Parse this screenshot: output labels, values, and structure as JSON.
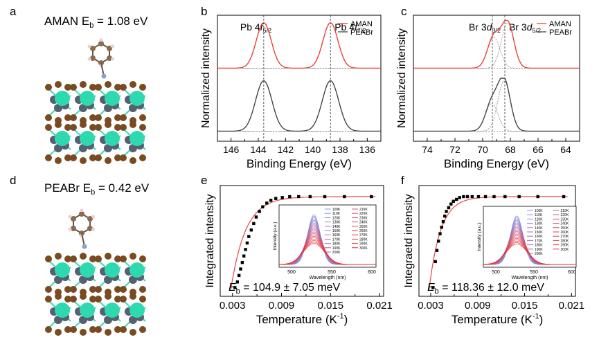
{
  "panels": {
    "a": {
      "letter": "a",
      "caption_prefix": "AMAN E",
      "caption_sub": "b",
      "caption_value": " = 1.08 eV"
    },
    "d": {
      "letter": "d",
      "caption_prefix": "PEABr E",
      "caption_sub": "b",
      "caption_value": " = 0.42 eV"
    },
    "b": {
      "letter": "b"
    },
    "c": {
      "letter": "c"
    },
    "e": {
      "letter": "e"
    },
    "f": {
      "letter": "f"
    }
  },
  "colors": {
    "aman": "#e8403a",
    "peabr": "#444444",
    "fit": "#e04848",
    "scatter": "#000000",
    "pb": "#2fd9b0",
    "br": "#7a4a20",
    "c": "#8a6a50",
    "h": "#e8d0d0"
  },
  "chart_data": [
    {
      "id": "b",
      "type": "line",
      "title": "",
      "xlabel": "Binding Energy (eV)",
      "ylabel": "Normalized intensity",
      "xlim": [
        147,
        135
      ],
      "xticks": [
        146,
        144,
        142,
        140,
        138,
        136
      ],
      "peak_labels": [
        {
          "text": "Pb 4",
          "ital": "f",
          "sub": "5/2",
          "x": 143.6
        },
        {
          "text": "Pb 4",
          "ital": "f",
          "sub": "7/2",
          "x": 138.7
        }
      ],
      "reference_lines": [
        143.6,
        138.7
      ],
      "legend": [
        "AMAN",
        "PEABr"
      ],
      "legend_position": "top-right",
      "series": [
        {
          "name": "AMAN",
          "peaks": [
            {
              "center": 143.6,
              "height": 1.0,
              "width": 0.55
            },
            {
              "center": 138.7,
              "height": 1.0,
              "width": 0.55
            }
          ]
        },
        {
          "name": "PEABr",
          "peaks": [
            {
              "center": 143.6,
              "height": 1.0,
              "width": 0.6
            },
            {
              "center": 138.7,
              "height": 1.0,
              "width": 0.6
            }
          ]
        }
      ]
    },
    {
      "id": "c",
      "type": "line",
      "title": "",
      "xlabel": "Binding Energy (eV)",
      "ylabel": "Normalized intensity",
      "xlim": [
        75,
        63
      ],
      "xticks": [
        74,
        72,
        70,
        68,
        66,
        64
      ],
      "peak_labels": [
        {
          "text": "Br 3",
          "ital": "d",
          "sub": "3/2",
          "x": 69.3
        },
        {
          "text": "Br 3",
          "ital": "d",
          "sub": "5/2",
          "x": 68.4
        }
      ],
      "reference_lines": [
        69.3,
        68.4
      ],
      "legend": [
        "AMAN",
        "PEABr"
      ],
      "legend_position": "top-right",
      "series": [
        {
          "name": "AMAN",
          "peaks": [
            {
              "center": 69.2,
              "height": 0.68,
              "width": 0.45
            },
            {
              "center": 68.2,
              "height": 1.0,
              "width": 0.45
            }
          ]
        },
        {
          "name": "PEABr",
          "peaks": [
            {
              "center": 69.35,
              "height": 0.55,
              "width": 0.45
            },
            {
              "center": 68.45,
              "height": 1.0,
              "width": 0.45
            }
          ]
        }
      ]
    },
    {
      "id": "e",
      "type": "scatter",
      "title": "",
      "xlabel": "Temperature (K",
      "xlabel_sup": "-1",
      "xlabel_end": ")",
      "ylabel": "Integrated intensity",
      "xlim": [
        0.0015,
        0.0215
      ],
      "xticks": [
        "0.003",
        "0.009",
        "0.015",
        "0.021"
      ],
      "annotation": {
        "prefix": "E",
        "sub": "b",
        "text": " = 104.9 ± 7.05 meV"
      },
      "x": [
        0.0033,
        0.0036,
        0.0038,
        0.004,
        0.0042,
        0.0044,
        0.0046,
        0.0048,
        0.005,
        0.0053,
        0.0056,
        0.0059,
        0.0063,
        0.0067,
        0.0072,
        0.0077,
        0.0083,
        0.0091,
        0.01,
        0.0111,
        0.0125,
        0.0143,
        0.0167,
        0.02
      ],
      "y": [
        0.02,
        0.08,
        0.15,
        0.22,
        0.29,
        0.36,
        0.43,
        0.5,
        0.57,
        0.64,
        0.71,
        0.78,
        0.84,
        0.89,
        0.93,
        0.96,
        0.98,
        0.99,
        1.0,
        1.0,
        1.0,
        1.0,
        1.0,
        1.0
      ],
      "fit": {
        "Eb_meV": 104.9
      },
      "inset": {
        "xlabel": "Wavelength (nm)",
        "ylabel": "Intensity (a.u.)",
        "xticks": [
          "500",
          "550",
          "600"
        ],
        "legend_left": [
          "100K",
          "110K",
          "120K",
          "130K",
          "140K",
          "150K",
          "160K",
          "170K",
          "180K",
          "190K",
          "200K"
        ],
        "legend_right": [
          "210K",
          "220K",
          "230K",
          "240K",
          "250K",
          "260K",
          "270K",
          "280K",
          "290K",
          "300K"
        ]
      }
    },
    {
      "id": "f",
      "type": "scatter",
      "title": "",
      "xlabel": "Temperature (K",
      "xlabel_sup": "-1",
      "xlabel_end": ")",
      "ylabel": "Integraetd intensity",
      "xlim": [
        0.0015,
        0.0215
      ],
      "xticks": [
        "0.003",
        "0.009",
        "0.015",
        "0.021"
      ],
      "annotation": {
        "prefix": "E",
        "sub": "b",
        "text": " = 118.36 ± 12.0 meV"
      },
      "x": [
        0.0033,
        0.0036,
        0.0038,
        0.004,
        0.0042,
        0.0044,
        0.0046,
        0.0048,
        0.005,
        0.0053,
        0.0056,
        0.0059,
        0.0063,
        0.0067,
        0.0072,
        0.0077,
        0.0083,
        0.0091,
        0.01,
        0.0111,
        0.0125,
        0.0143,
        0.0167,
        0.02
      ],
      "y": [
        0.02,
        0.3,
        0.42,
        0.52,
        0.6,
        0.67,
        0.73,
        0.79,
        0.84,
        0.88,
        0.92,
        0.95,
        0.97,
        0.99,
        1.0,
        1.0,
        1.0,
        1.0,
        1.0,
        1.0,
        1.0,
        1.0,
        1.0,
        1.0
      ],
      "fit": {
        "Eb_meV": 118.36
      },
      "inset": {
        "xlabel": "Wavelength (nm)",
        "ylabel": "Intensity (a.u.)",
        "xticks": [
          "500",
          "550",
          "600"
        ],
        "legend_left": [
          "100K",
          "110K",
          "120K",
          "130K",
          "140K",
          "150K",
          "160K",
          "170K",
          "180K",
          "190K",
          "200K"
        ],
        "legend_right": [
          "210K",
          "220K",
          "230K",
          "240K",
          "250K",
          "260K",
          "270K",
          "280K",
          "290K",
          "300K"
        ]
      }
    }
  ]
}
